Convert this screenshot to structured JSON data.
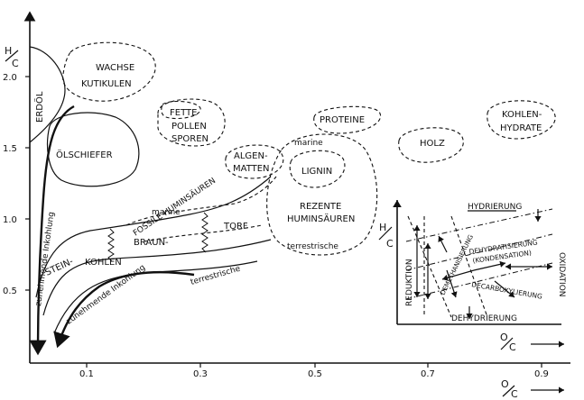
{
  "axes": {
    "y_label_top": "H",
    "y_label_bottom": "C",
    "x_label_top": "O",
    "x_label_bottom": "C",
    "y_ticks": [
      "0.5",
      "1.0",
      "1.5",
      "2.0"
    ],
    "x_ticks": [
      "0.1",
      "0.3",
      "0.5",
      "0.7",
      "0.9"
    ]
  },
  "regions": {
    "erdoel": "ERDÖL",
    "wachse_1": "WACHSE",
    "wachse_2": "KUTIKULEN",
    "fette_1": "FETTE",
    "fette_2": "POLLEN",
    "fette_3": "SPOREN",
    "proteine": "PROTEINE",
    "kohlenhydrate_1": "KOHLEN-",
    "kohlenhydrate_2": "HYDRATE",
    "holz": "HOLZ",
    "oelschiefer": "ÖLSCHIEFER",
    "algen_1": "ALGEN-",
    "algen_2": "MATTEN",
    "lignin": "LIGNIN",
    "marine_top": "marine",
    "rezente_1": "REZENTE",
    "rezente_2": "HUMINSÄUREN",
    "terrestrische_bottom": "terrestrische",
    "fossile": "FOSSILE HUMINSÄUREN",
    "fossile_marine": "marine",
    "braun": "BRAUN-",
    "torf": "TORF",
    "stein": "STEIN-",
    "kohlen": "KOHLEN",
    "terrestrische_curve": "terrestrische",
    "inkohlung_vertical": "zunehmende Inkohlung",
    "inkohlung_lower": "zunehmende Inkohlung"
  },
  "inset": {
    "y_label_top": "H",
    "y_label_bottom": "C",
    "x_label_top": "O",
    "x_label_bottom": "C",
    "hydrierung": "HYDRIERUNG",
    "reduktion": "REDUKTION",
    "oxidation": "OXIDATION",
    "demethanisierung": "DEMETHANISIERUNG",
    "dehydratisierung_1": "DEHYDRATISIERUNG",
    "dehydratisierung_2": "(KONDENSATION)",
    "decarboxylierung": "DECARBOXYLIERUNG",
    "dehydrierung": "DEHYDRIERUNG"
  }
}
